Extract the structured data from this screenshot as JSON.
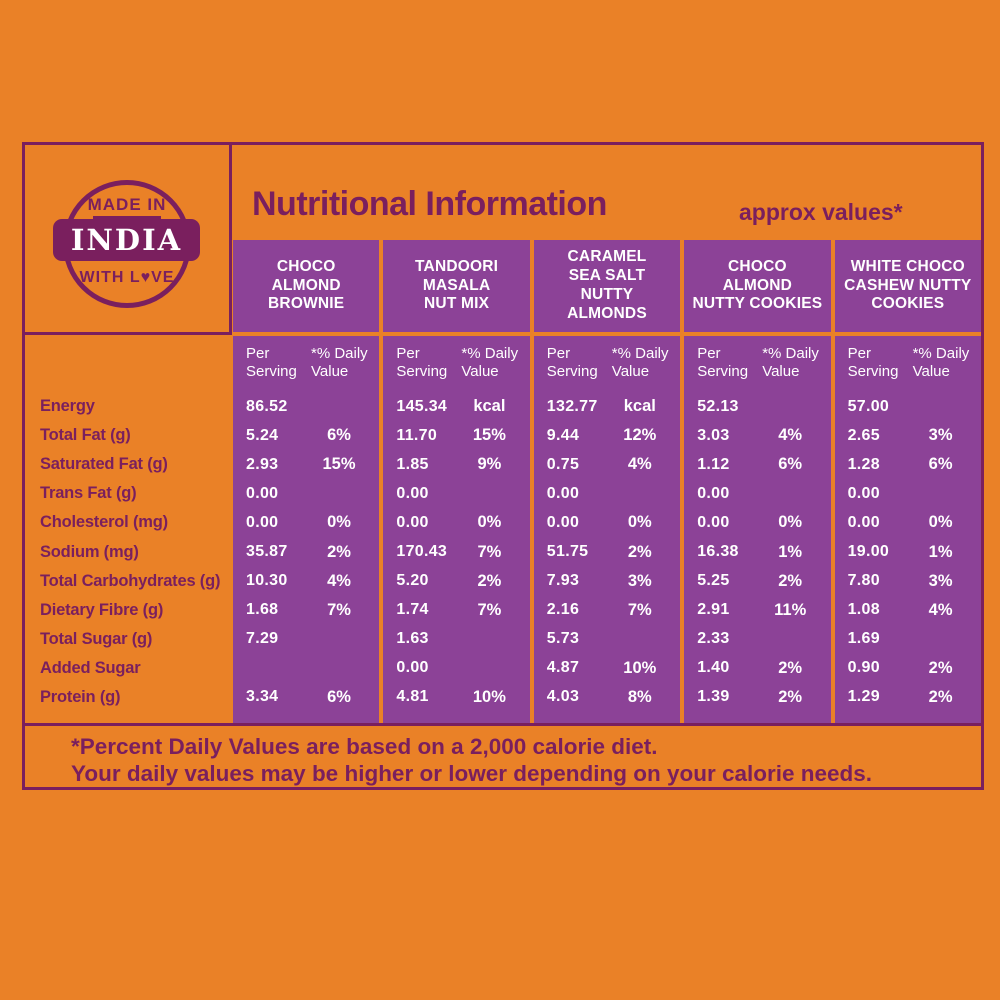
{
  "badge": {
    "top": "MADE IN",
    "middle": "INDIA",
    "bottom_pre": "WITH L",
    "heart": "♥",
    "bottom_post": "VE"
  },
  "title": "Nutritional Information",
  "approx": "approx values*",
  "products": [
    {
      "name": "CHOCO\nALMOND\nBROWNIE"
    },
    {
      "name": "TANDOORI\nMASALA\nNUT MIX"
    },
    {
      "name": "CARAMEL\nSEA SALT\nNUTTY\nALMONDS"
    },
    {
      "name": "CHOCO\nALMOND\nNUTTY COOKIES"
    },
    {
      "name": "WHITE CHOCO\nCASHEW NUTTY\nCOOKIES"
    }
  ],
  "subheader": {
    "per_serving": "Per\nServing",
    "daily_value": "*% Daily\nValue"
  },
  "rows": [
    {
      "label": "Energy",
      "cells": [
        {
          "ps": "86.52",
          "dv": ""
        },
        {
          "ps": "145.34",
          "dv": "kcal"
        },
        {
          "ps": "132.77",
          "dv": "kcal"
        },
        {
          "ps": "52.13",
          "dv": ""
        },
        {
          "ps": "57.00",
          "dv": ""
        }
      ]
    },
    {
      "label": "Total Fat (g)",
      "cells": [
        {
          "ps": "5.24",
          "dv": "6%"
        },
        {
          "ps": "11.70",
          "dv": "15%"
        },
        {
          "ps": "9.44",
          "dv": "12%"
        },
        {
          "ps": "3.03",
          "dv": "4%"
        },
        {
          "ps": "2.65",
          "dv": "3%"
        }
      ]
    },
    {
      "label": "Saturated Fat (g)",
      "cells": [
        {
          "ps": "2.93",
          "dv": "15%"
        },
        {
          "ps": "1.85",
          "dv": "9%"
        },
        {
          "ps": "0.75",
          "dv": "4%"
        },
        {
          "ps": "1.12",
          "dv": "6%"
        },
        {
          "ps": "1.28",
          "dv": "6%"
        }
      ]
    },
    {
      "label": "Trans Fat (g)",
      "cells": [
        {
          "ps": "0.00",
          "dv": ""
        },
        {
          "ps": "0.00",
          "dv": ""
        },
        {
          "ps": "0.00",
          "dv": ""
        },
        {
          "ps": "0.00",
          "dv": ""
        },
        {
          "ps": "0.00",
          "dv": ""
        }
      ]
    },
    {
      "label": "Cholesterol (mg)",
      "cells": [
        {
          "ps": "0.00",
          "dv": "0%"
        },
        {
          "ps": "0.00",
          "dv": "0%"
        },
        {
          "ps": "0.00",
          "dv": "0%"
        },
        {
          "ps": "0.00",
          "dv": "0%"
        },
        {
          "ps": "0.00",
          "dv": "0%"
        }
      ]
    },
    {
      "label": "Sodium (mg)",
      "cells": [
        {
          "ps": "35.87",
          "dv": "2%"
        },
        {
          "ps": "170.43",
          "dv": "7%"
        },
        {
          "ps": "51.75",
          "dv": "2%"
        },
        {
          "ps": "16.38",
          "dv": "1%"
        },
        {
          "ps": "19.00",
          "dv": "1%"
        }
      ]
    },
    {
      "label": "Total Carbohydrates (g)",
      "cells": [
        {
          "ps": "10.30",
          "dv": "4%"
        },
        {
          "ps": "5.20",
          "dv": "2%"
        },
        {
          "ps": "7.93",
          "dv": "3%"
        },
        {
          "ps": "5.25",
          "dv": "2%"
        },
        {
          "ps": "7.80",
          "dv": "3%"
        }
      ]
    },
    {
      "label": "Dietary Fibre (g)",
      "cells": [
        {
          "ps": "1.68",
          "dv": "7%"
        },
        {
          "ps": "1.74",
          "dv": "7%"
        },
        {
          "ps": "2.16",
          "dv": "7%"
        },
        {
          "ps": "2.91",
          "dv": "11%"
        },
        {
          "ps": "1.08",
          "dv": "4%"
        }
      ]
    },
    {
      "label": "Total Sugar (g)",
      "cells": [
        {
          "ps": "7.29",
          "dv": ""
        },
        {
          "ps": "1.63",
          "dv": ""
        },
        {
          "ps": "5.73",
          "dv": ""
        },
        {
          "ps": "2.33",
          "dv": ""
        },
        {
          "ps": "1.69",
          "dv": ""
        }
      ]
    },
    {
      "label": "Added Sugar",
      "cells": [
        {
          "ps": "",
          "dv": ""
        },
        {
          "ps": "0.00",
          "dv": ""
        },
        {
          "ps": "4.87",
          "dv": "10%"
        },
        {
          "ps": "1.40",
          "dv": "2%"
        },
        {
          "ps": "0.90",
          "dv": "2%"
        }
      ]
    },
    {
      "label": "Protein (g)",
      "cells": [
        {
          "ps": "3.34",
          "dv": "6%"
        },
        {
          "ps": "4.81",
          "dv": "10%"
        },
        {
          "ps": "4.03",
          "dv": "8%"
        },
        {
          "ps": "1.39",
          "dv": "2%"
        },
        {
          "ps": "1.29",
          "dv": "2%"
        }
      ]
    }
  ],
  "footnote": {
    "line1": "*Percent Daily Values are based on a 2,000 calorie diet.",
    "line2": "Your daily values may be higher or lower depending on your calorie needs."
  },
  "colors": {
    "background_orange": "#EA8127",
    "block_purple": "#8C4297",
    "dark_plum": "#7A1F5E",
    "text_white": "#FFFFFF"
  }
}
